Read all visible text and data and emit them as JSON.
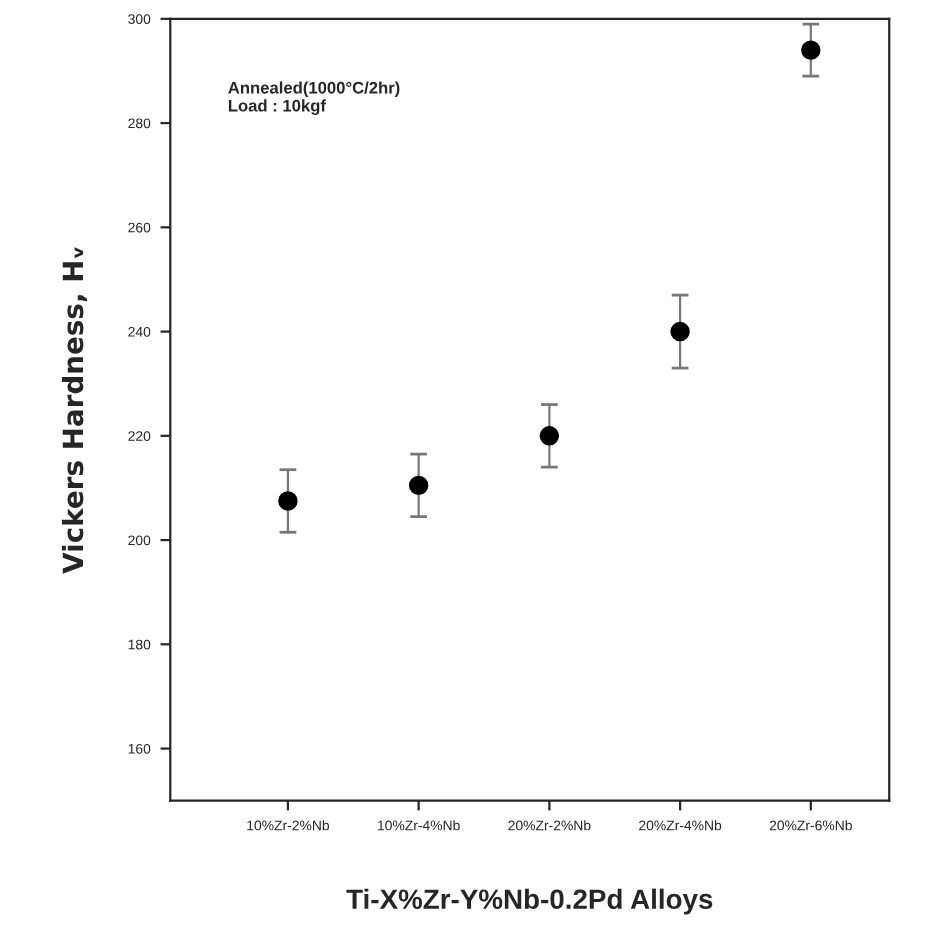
{
  "chart_data": {
    "type": "scatter",
    "xlabel": "Ti-X%Zr-Y%Nb-0.2Pd Alloys",
    "ylabel": "Vickers Hardness, Hᵥ",
    "categories": [
      "10%Zr-2%Nb",
      "10%Zr-4%Nb",
      "20%Zr-2%Nb",
      "20%Zr-4%Nb",
      "20%Zr-6%Nb"
    ],
    "series": [
      {
        "color": "#000000",
        "values": [
          207.5,
          210.5,
          220,
          240,
          294
        ],
        "errors": [
          6,
          6,
          6,
          7,
          5
        ]
      }
    ],
    "ylim": [
      150,
      300
    ],
    "yticks": [
      160,
      180,
      200,
      220,
      240,
      260,
      280,
      300
    ],
    "marker": "circle",
    "grid": false,
    "legend": false,
    "annotations": [
      "Annealed(1000°C/2hr)\nLoad : 10kgf"
    ]
  }
}
